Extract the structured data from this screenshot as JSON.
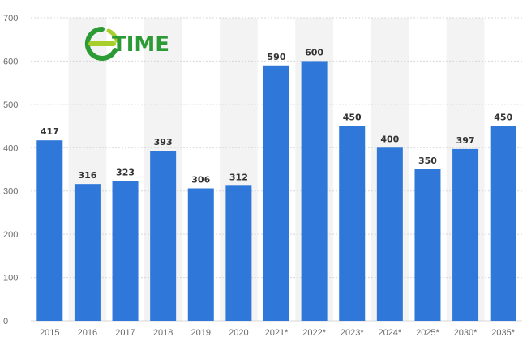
{
  "logo": {
    "e": "e",
    "text": "TIME",
    "colors": {
      "green_dark": "#2c9a35",
      "green_light": "#a6cf2c"
    }
  },
  "colors": {
    "bar": "#2f78d9",
    "band": "#f3f3f3",
    "grid": "#d7d7d7",
    "tick": "#6b6b6b",
    "value": "#333333"
  },
  "chart_data": {
    "type": "bar",
    "categories": [
      "2015",
      "2016",
      "2017",
      "2018",
      "2019",
      "2020",
      "2021*",
      "2022*",
      "2023*",
      "2024*",
      "2025*",
      "2030*",
      "2035*"
    ],
    "values": [
      417,
      316,
      323,
      393,
      306,
      312,
      590,
      600,
      450,
      400,
      350,
      397,
      450
    ],
    "title": "",
    "xlabel": "",
    "ylabel": "",
    "ylim": [
      0,
      700
    ],
    "yticks": [
      "0",
      "100",
      "200",
      "300",
      "400",
      "500",
      "600",
      "700"
    ],
    "grid": true,
    "data_labels": true
  }
}
